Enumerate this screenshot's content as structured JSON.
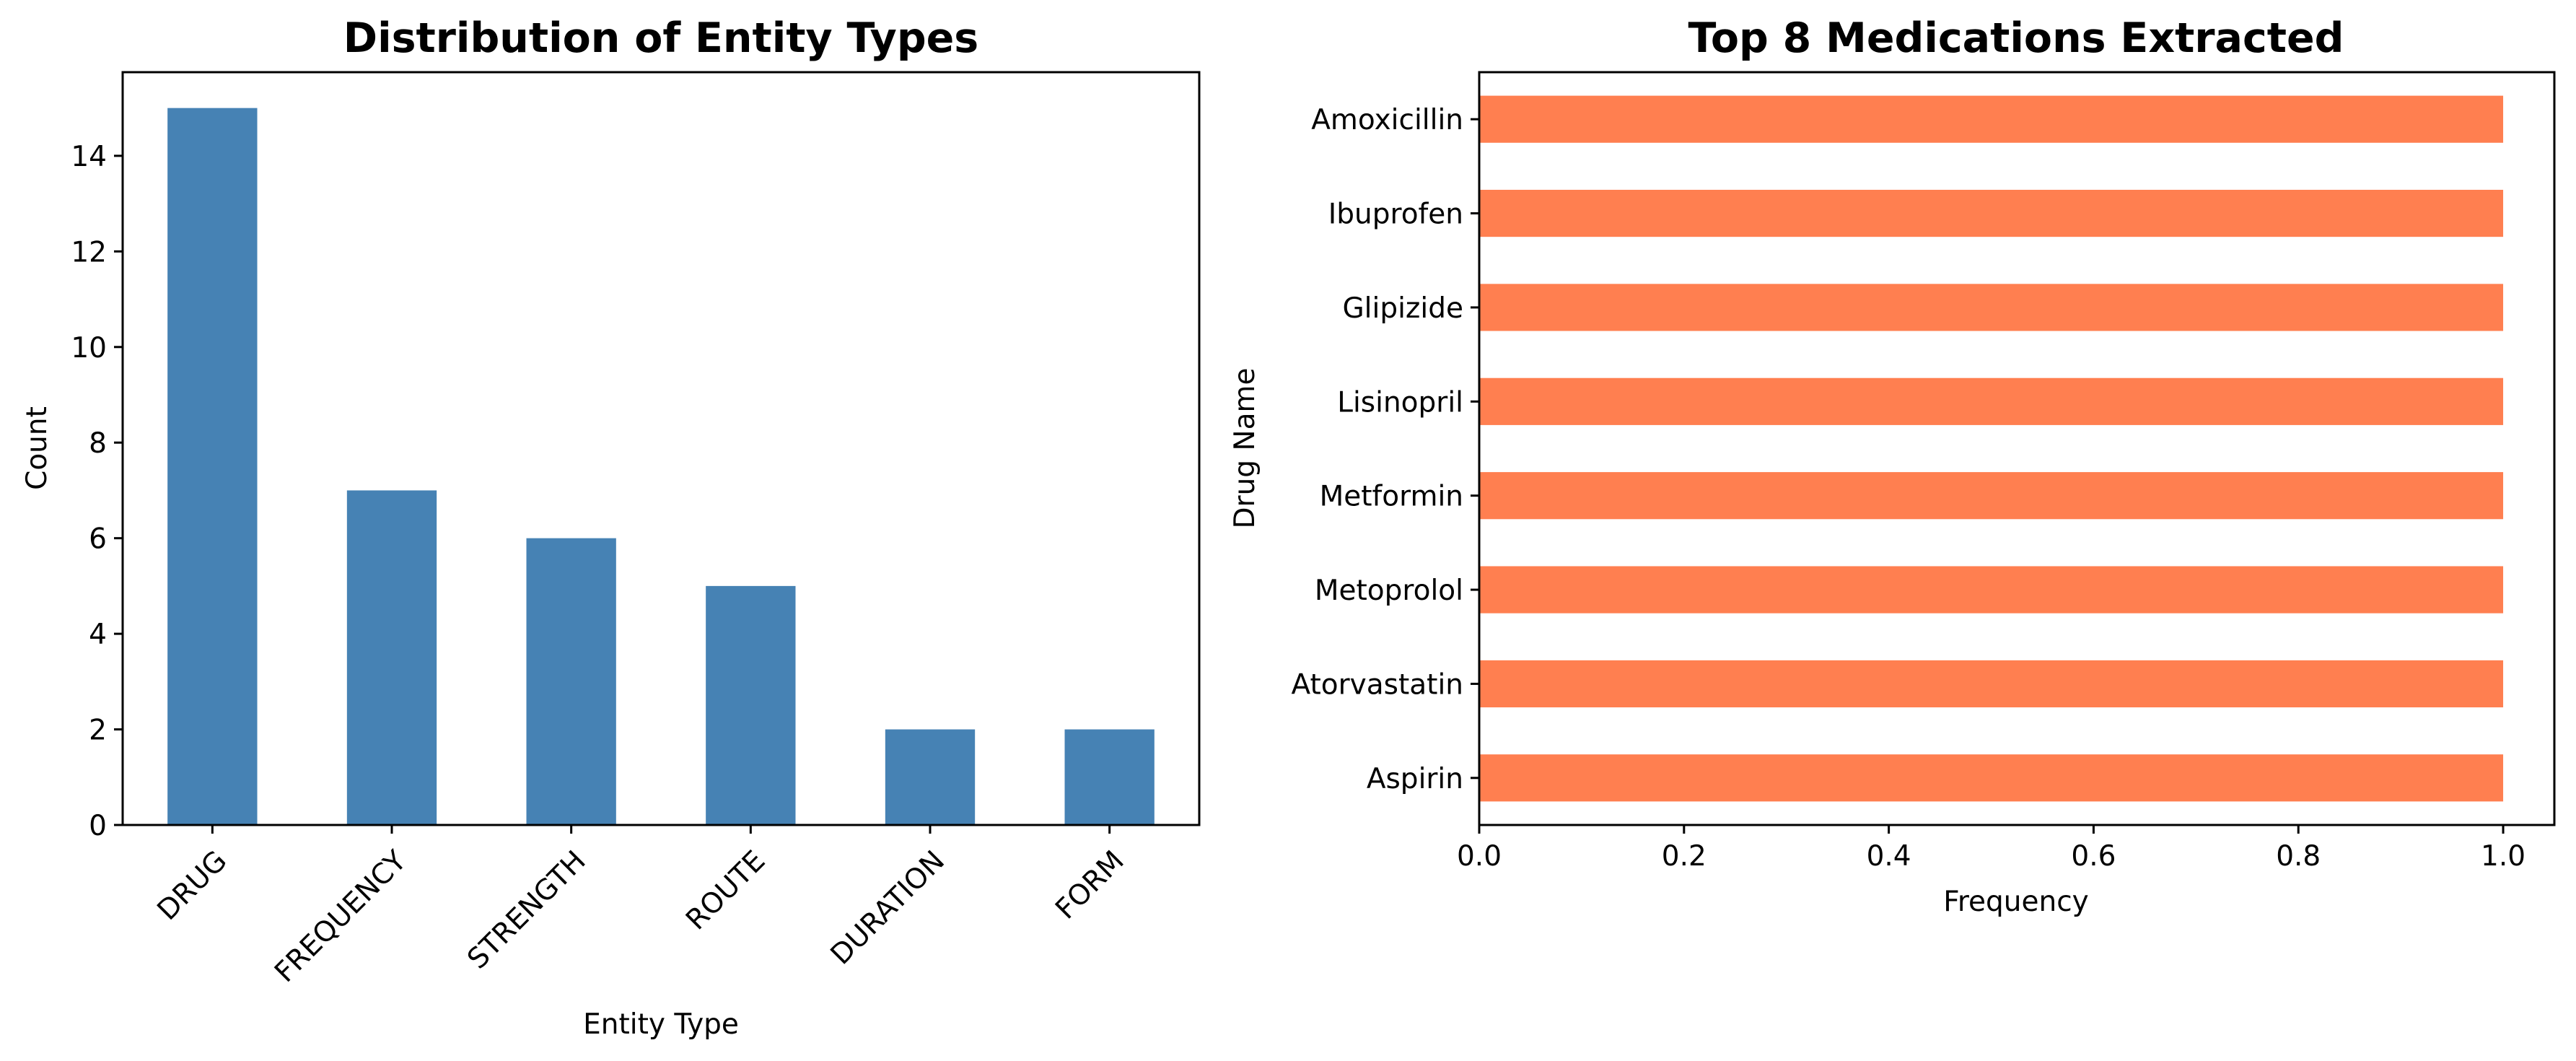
{
  "chart_data": [
    {
      "type": "bar",
      "title": "Distribution of Entity Types",
      "xlabel": "Entity Type",
      "ylabel": "Count",
      "categories": [
        "DRUG",
        "FREQUENCY",
        "STRENGTH",
        "ROUTE",
        "DURATION",
        "FORM"
      ],
      "values": [
        15,
        7,
        6,
        5,
        2,
        2
      ],
      "ylim": [
        0,
        15.75
      ],
      "yticks": [
        0,
        2,
        4,
        6,
        8,
        10,
        12,
        14
      ],
      "bar_color": "#4682b4",
      "grid": false,
      "legend": "none"
    },
    {
      "type": "bar",
      "orientation": "horizontal",
      "title": "Top 8 Medications Extracted",
      "xlabel": "Frequency",
      "ylabel": "Drug Name",
      "categories": [
        "Amoxicillin",
        "Ibuprofen",
        "Glipizide",
        "Lisinopril",
        "Metformin",
        "Metoprolol",
        "Atorvastatin",
        "Aspirin"
      ],
      "values": [
        1,
        1,
        1,
        1,
        1,
        1,
        1,
        1
      ],
      "xlim": [
        0,
        1.05
      ],
      "xticks": [
        "0.0",
        "0.2",
        "0.4",
        "0.6",
        "0.8",
        "1.0"
      ],
      "bar_color": "#ff7f50",
      "grid": false,
      "legend": "none"
    }
  ]
}
